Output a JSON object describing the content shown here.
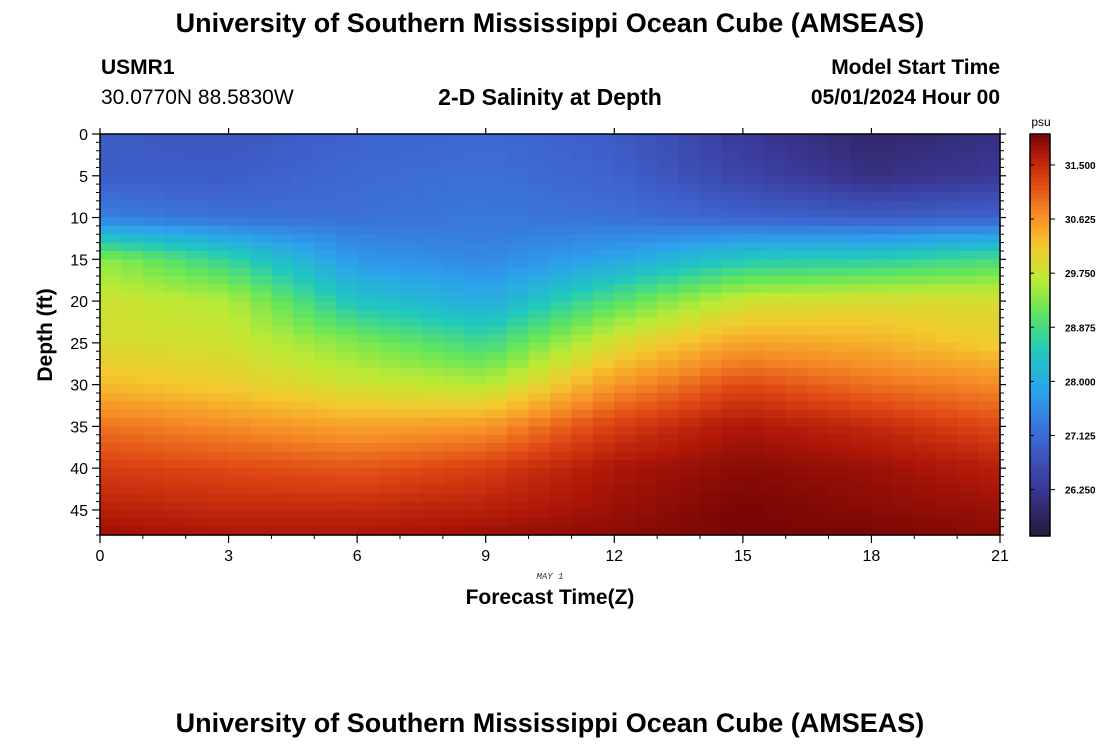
{
  "header": {
    "title": "University of Southern Mississippi Ocean Cube (AMSEAS)",
    "station_id": "USMR1",
    "coordinates": "30.0770N  88.5830W",
    "plot_title": "2-D Salinity at Depth",
    "model_start_label": "Model Start Time",
    "model_start_value": "05/01/2024 Hour 00"
  },
  "footer": {
    "title": "University of Southern Mississippi Ocean Cube (AMSEAS)"
  },
  "chart_data": {
    "type": "heatmap",
    "title": "2-D Salinity at Depth",
    "xlabel": "Forecast Time(Z)",
    "ylabel": "Depth (ft)",
    "x_note": "MAY 1",
    "xlim": [
      0,
      21
    ],
    "ylim": [
      48,
      0
    ],
    "x_ticks": [
      0,
      3,
      6,
      9,
      12,
      15,
      18,
      21
    ],
    "y_ticks": [
      0,
      5,
      10,
      15,
      20,
      25,
      30,
      35,
      40,
      45
    ],
    "colorbar": {
      "unit": "psu",
      "range": [
        25.5,
        32.0
      ],
      "ticks": [
        "31.500",
        "30.625",
        "29.750",
        "28.875",
        "28.000",
        "27.125",
        "26.250"
      ]
    },
    "time_hours": [
      0,
      3,
      6,
      9,
      12,
      15,
      18,
      21
    ],
    "depth_ft": [
      0,
      5,
      10,
      15,
      20,
      25,
      30,
      35,
      40,
      45,
      48
    ],
    "salinity_psu": [
      [
        26.9,
        26.8,
        27.0,
        27.1,
        26.9,
        26.3,
        25.9,
        26.1
      ],
      [
        26.9,
        26.9,
        27.1,
        27.2,
        27.0,
        26.5,
        26.1,
        26.3
      ],
      [
        27.4,
        27.2,
        27.2,
        27.3,
        27.2,
        27.0,
        26.9,
        27.0
      ],
      [
        29.4,
        28.7,
        27.7,
        27.5,
        27.9,
        28.5,
        28.6,
        28.9
      ],
      [
        29.8,
        29.6,
        28.4,
        28.0,
        29.0,
        29.8,
        29.9,
        29.9
      ],
      [
        29.9,
        29.8,
        29.3,
        28.8,
        29.9,
        30.5,
        30.4,
        30.1
      ],
      [
        30.3,
        30.1,
        29.8,
        29.6,
        30.6,
        31.2,
        30.9,
        30.7
      ],
      [
        30.9,
        30.7,
        30.5,
        30.6,
        31.3,
        31.7,
        31.5,
        31.2
      ],
      [
        31.3,
        31.2,
        31.1,
        31.3,
        31.7,
        31.9,
        31.8,
        31.6
      ],
      [
        31.6,
        31.5,
        31.5,
        31.6,
        31.8,
        32.0,
        31.9,
        31.8
      ],
      [
        31.8,
        31.7,
        31.7,
        31.8,
        31.9,
        32.0,
        32.0,
        31.9
      ]
    ]
  }
}
